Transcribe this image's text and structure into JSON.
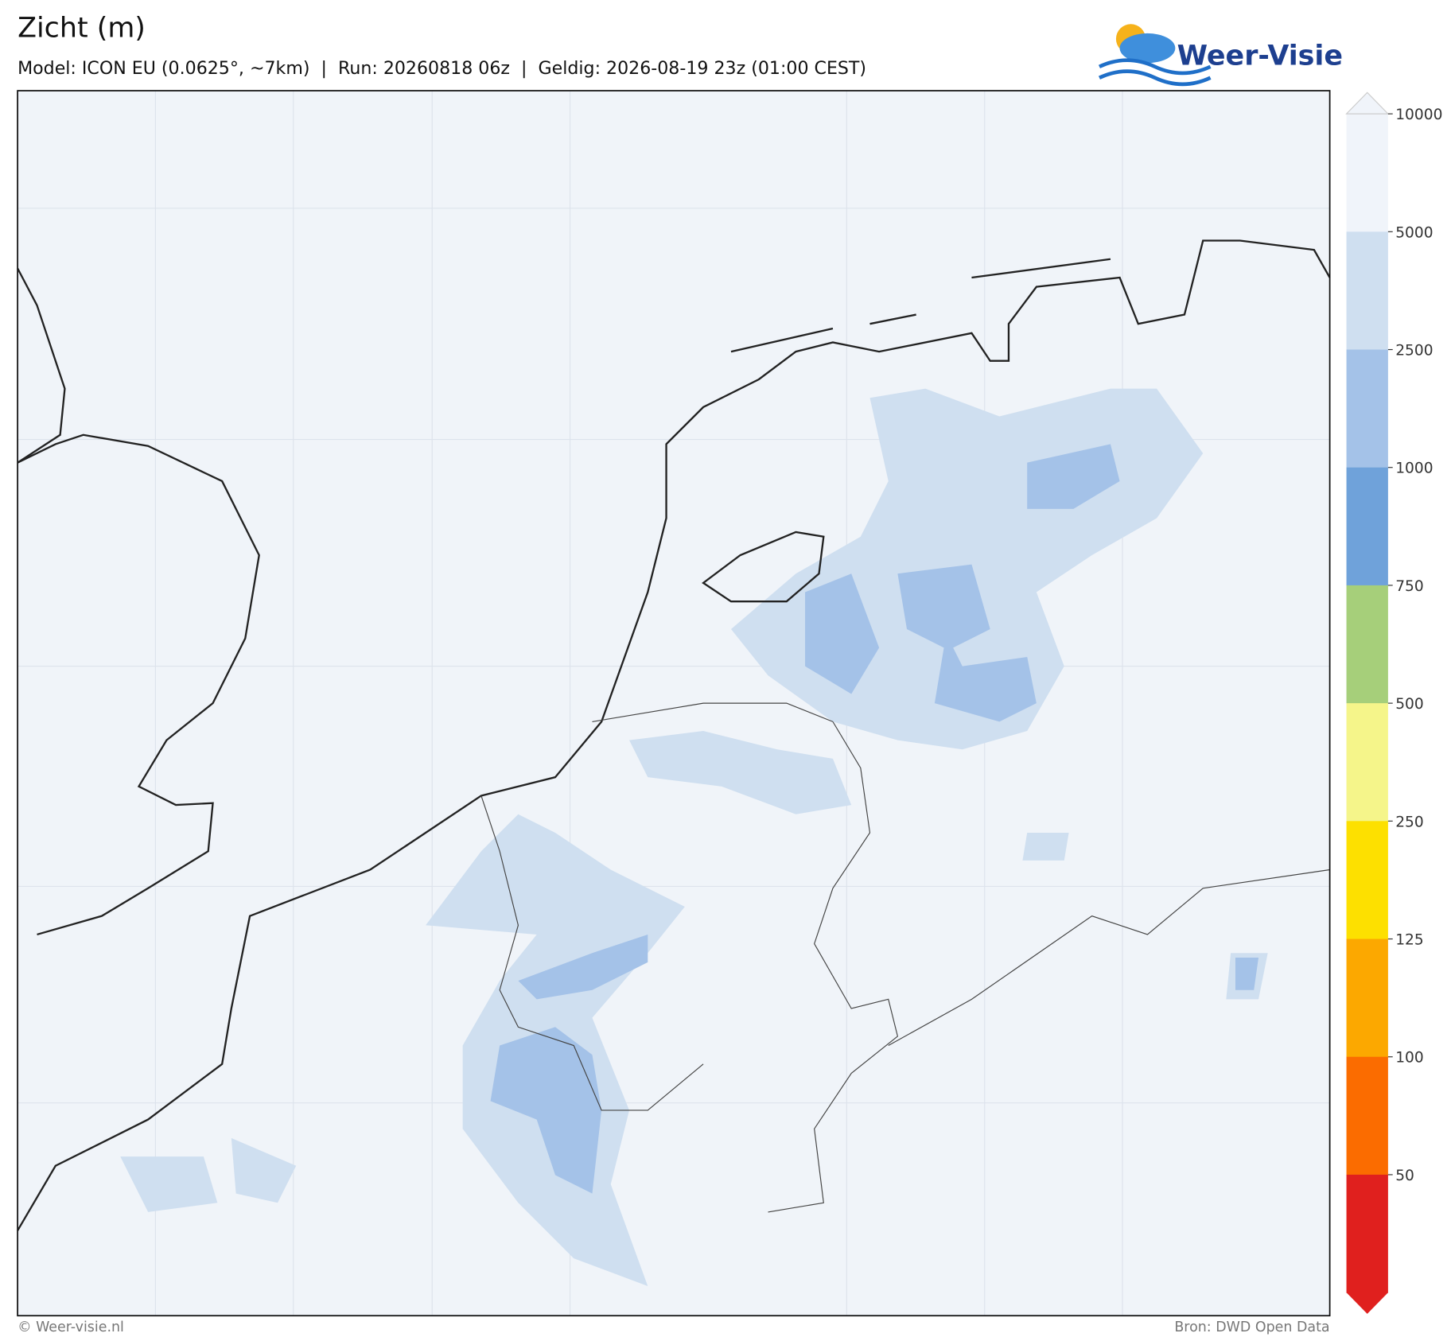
{
  "header": {
    "title": "Zicht (m)",
    "subtitle": "Model: ICON EU (0.0625°, ~7km)  |  Run: 20260818 06z  |  Geldig: 2026-08-19 23z (01:00 CEST)"
  },
  "logo": {
    "text": "Weer-Visie"
  },
  "colorbar": {
    "ticks": [
      10000,
      5000,
      2500,
      1000,
      750,
      500,
      250,
      125,
      100,
      50
    ],
    "colors": [
      "#f0f4fa",
      "#cfdff0",
      "#a4c2e8",
      "#6fa2da",
      "#a6cf7a",
      "#f5f58a",
      "#fde000",
      "#fca800",
      "#fb6c00",
      "#e0201e"
    ]
  },
  "footer": {
    "left": "© Weer-visie.nl",
    "right": "Bron: DWD Open Data"
  }
}
